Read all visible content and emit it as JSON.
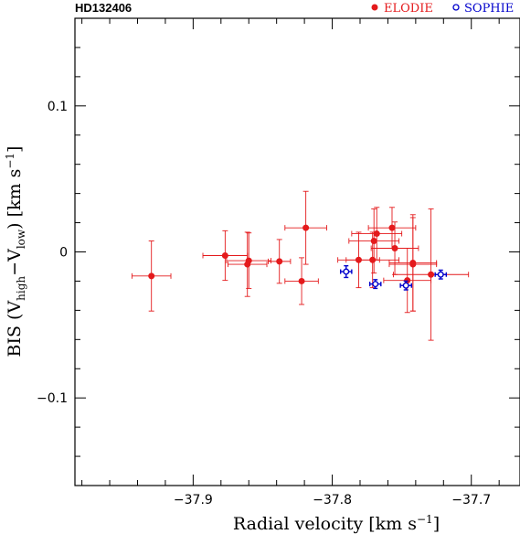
{
  "chart_data": {
    "type": "scatter",
    "title": "HD132406",
    "xlabel": "Radial velocity [km s",
    "xlabel_sup": "−1",
    "xlabel_tail": "]",
    "ylabel_parts": {
      "a": "BIS (V",
      "b": "high",
      "c": "−V",
      "d": "low",
      "e": ") [km s",
      "f": "−1",
      "g": "]"
    },
    "xlim": [
      -37.985,
      -37.665
    ],
    "ylim": [
      -0.16,
      0.16
    ],
    "x_ticks": [
      -37.9,
      -37.8,
      -37.7
    ],
    "x_tick_labels": [
      "−37.9",
      "−37.8",
      "−37.7"
    ],
    "y_ticks": [
      -0.1,
      0,
      0.1
    ],
    "y_tick_labels": [
      "−0.1",
      "0",
      "0.1"
    ],
    "legend_position": "top-right",
    "series": [
      {
        "name": "ELODIE",
        "color": "#e41a1c",
        "marker": "filled-circle",
        "points": [
          {
            "x": -37.93,
            "y": -0.0165,
            "xerr": 0.014,
            "yerr": 0.024
          },
          {
            "x": -37.877,
            "y": -0.0025,
            "xerr": 0.016,
            "yerr": 0.017
          },
          {
            "x": -37.86,
            "y": -0.006,
            "xerr": 0.016,
            "yerr": 0.019
          },
          {
            "x": -37.861,
            "y": -0.0085,
            "xerr": 0.014,
            "yerr": 0.022
          },
          {
            "x": -37.838,
            "y": -0.0065,
            "xerr": 0.008,
            "yerr": 0.015
          },
          {
            "x": -37.819,
            "y": 0.0165,
            "xerr": 0.015,
            "yerr": 0.025
          },
          {
            "x": -37.822,
            "y": -0.02,
            "xerr": 0.012,
            "yerr": 0.016
          },
          {
            "x": -37.781,
            "y": -0.0055,
            "xerr": 0.015,
            "yerr": 0.019
          },
          {
            "x": -37.768,
            "y": 0.0125,
            "xerr": 0.018,
            "yerr": 0.018
          },
          {
            "x": -37.77,
            "y": 0.0075,
            "xerr": 0.018,
            "yerr": 0.022
          },
          {
            "x": -37.771,
            "y": -0.0055,
            "xerr": 0.019,
            "yerr": 0.019
          },
          {
            "x": -37.757,
            "y": 0.0165,
            "xerr": 0.017,
            "yerr": 0.014
          },
          {
            "x": -37.755,
            "y": 0.0025,
            "xerr": 0.017,
            "yerr": 0.018
          },
          {
            "x": -37.742,
            "y": -0.0075,
            "xerr": 0.017,
            "yerr": 0.033
          },
          {
            "x": -37.742,
            "y": -0.0085,
            "xerr": 0.017,
            "yerr": 0.032
          },
          {
            "x": -37.746,
            "y": -0.0195,
            "xerr": 0.017,
            "yerr": 0.022
          },
          {
            "x": -37.729,
            "y": -0.0155,
            "xerr": 0.027,
            "yerr": 0.045
          }
        ]
      },
      {
        "name": "SOPHIE",
        "color": "#0000cc",
        "marker": "open-circle",
        "points": [
          {
            "x": -37.79,
            "y": -0.0135,
            "xerr": 0.004,
            "yerr": 0.004
          },
          {
            "x": -37.769,
            "y": -0.022,
            "xerr": 0.004,
            "yerr": 0.003
          },
          {
            "x": -37.747,
            "y": -0.023,
            "xerr": 0.004,
            "yerr": 0.003
          },
          {
            "x": -37.722,
            "y": -0.0155,
            "xerr": 0.004,
            "yerr": 0.003
          }
        ]
      }
    ]
  }
}
